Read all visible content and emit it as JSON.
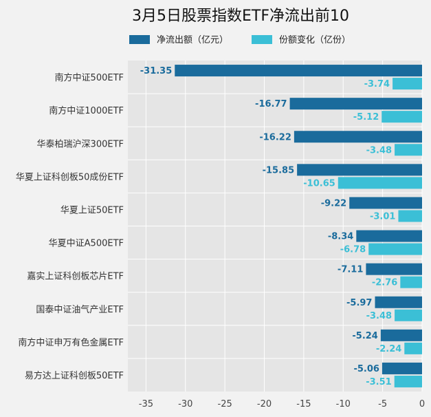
{
  "chart_data": {
    "type": "bar",
    "orientation": "horizontal",
    "title": "3月5日股票指数ETF净流出前10",
    "categories": [
      "南方中证500ETF",
      "南方中证1000ETF",
      "华泰柏瑞沪深300ETF",
      "华夏上证科创板50成份ETF",
      "华夏上证50ETF",
      "华夏中证A500ETF",
      "嘉实上证科创板芯片ETF",
      "国泰中证油气产业ETF",
      "南方中证申万有色金属ETF",
      "易方达上证科创板50ETF"
    ],
    "series": [
      {
        "name": "净流出额（亿元）",
        "color": "#1a6b9c",
        "values": [
          -31.35,
          -16.77,
          -16.22,
          -15.85,
          -9.22,
          -8.34,
          -7.11,
          -5.97,
          -5.24,
          -5.06
        ]
      },
      {
        "name": "份额变化（亿份）",
        "color": "#3bbfd6",
        "values": [
          -3.74,
          -5.12,
          -3.48,
          -10.65,
          -3.01,
          -6.78,
          -2.76,
          -3.48,
          -2.24,
          -3.51
        ]
      }
    ],
    "xticks": [
      -35,
      -30,
      -25,
      -20,
      -15,
      -10,
      -5,
      0
    ],
    "xlim": [
      -37.3,
      0
    ],
    "grid": true,
    "legend": "top",
    "xlabel": "",
    "ylabel": ""
  }
}
